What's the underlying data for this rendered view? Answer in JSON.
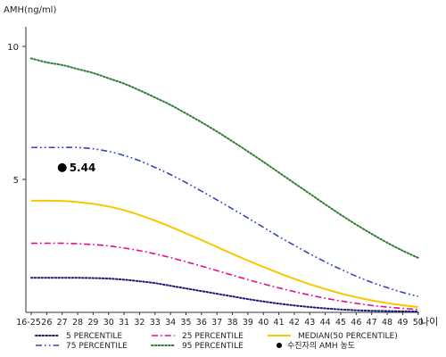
{
  "chart_data": {
    "type": "line",
    "ylabel": "AMH(ng/ml)",
    "xlabel": "나이",
    "ylim": [
      0,
      10.5
    ],
    "yticks": [
      {
        "value": 5,
        "label": "5"
      },
      {
        "value": 10,
        "label": "10"
      }
    ],
    "x": [
      "16-25",
      "26",
      "27",
      "28",
      "29",
      "30",
      "31",
      "32",
      "33",
      "34",
      "35",
      "36",
      "37",
      "38",
      "39",
      "40",
      "41",
      "42",
      "43",
      "44",
      "45",
      "46",
      "47",
      "48",
      "49",
      "50"
    ],
    "grid": false,
    "legend_position": "bottom",
    "series": [
      {
        "name": "5 PERCENTILE",
        "color": "#1a1a7a",
        "dash": "dot",
        "values": [
          1.3,
          1.3,
          1.3,
          1.3,
          1.29,
          1.27,
          1.23,
          1.17,
          1.1,
          1.0,
          0.9,
          0.8,
          0.7,
          0.6,
          0.5,
          0.41,
          0.33,
          0.26,
          0.2,
          0.15,
          0.11,
          0.08,
          0.06,
          0.05,
          0.04,
          0.03
        ]
      },
      {
        "name": "25 PERCENTILE",
        "color": "#e0108a",
        "dash": "dashdot",
        "values": [
          2.6,
          2.6,
          2.6,
          2.58,
          2.55,
          2.5,
          2.42,
          2.32,
          2.2,
          2.06,
          1.9,
          1.74,
          1.57,
          1.4,
          1.23,
          1.07,
          0.92,
          0.78,
          0.65,
          0.53,
          0.43,
          0.34,
          0.26,
          0.2,
          0.15,
          0.11
        ]
      },
      {
        "name": "MEDIAN(50 PERCENTILE)",
        "color": "#f5c800",
        "dash": "solid",
        "values": [
          4.2,
          4.2,
          4.19,
          4.15,
          4.08,
          3.98,
          3.84,
          3.66,
          3.45,
          3.22,
          2.97,
          2.72,
          2.46,
          2.2,
          1.95,
          1.71,
          1.48,
          1.26,
          1.06,
          0.88,
          0.71,
          0.57,
          0.45,
          0.35,
          0.27,
          0.2
        ]
      },
      {
        "name": "75 PERCENTILE",
        "color": "#3344bb",
        "dash": "dashdotdot",
        "values": [
          6.2,
          6.2,
          6.2,
          6.2,
          6.15,
          6.05,
          5.9,
          5.7,
          5.45,
          5.18,
          4.88,
          4.56,
          4.23,
          3.89,
          3.55,
          3.2,
          2.85,
          2.52,
          2.2,
          1.9,
          1.62,
          1.36,
          1.13,
          0.93,
          0.75,
          0.6
        ]
      },
      {
        "name": "95 PERCENTILE",
        "color": "#2e7d32",
        "dash": "dot",
        "values": [
          9.55,
          9.4,
          9.3,
          9.15,
          9.0,
          8.8,
          8.6,
          8.35,
          8.08,
          7.8,
          7.48,
          7.15,
          6.8,
          6.43,
          6.05,
          5.66,
          5.26,
          4.86,
          4.46,
          4.06,
          3.67,
          3.3,
          2.95,
          2.62,
          2.32,
          2.05
        ]
      }
    ],
    "points": [
      {
        "name": "수진자의 AMH 농도",
        "x": "27",
        "y": 5.44,
        "label": "5.44",
        "color": "#000000"
      }
    ]
  }
}
